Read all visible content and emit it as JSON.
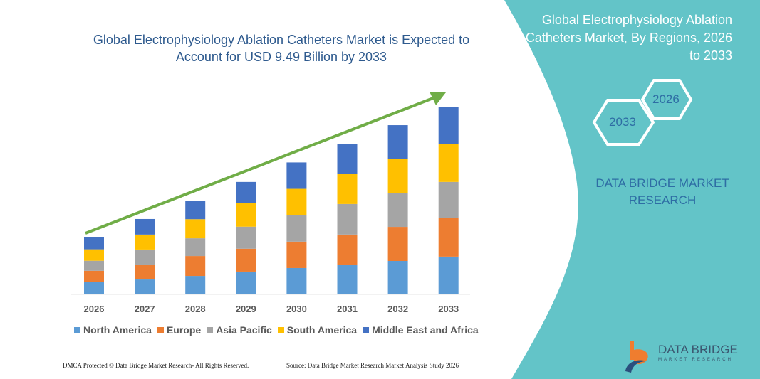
{
  "title": "Global Electrophysiology Ablation Catheters Market is Expected to Account for USD 9.49 Billion by 2033",
  "side_panel": {
    "title": "Global Electrophysiology Ablation Catheters Market, By Regions, 2026 to 2033",
    "hex_start": "2026",
    "hex_end": "2033",
    "brand": "DATA BRIDGE MARKET RESEARCH"
  },
  "footer": {
    "copyright": "DMCA Protected © Data Bridge Market Research- All Rights Reserved.",
    "source": "Source: Data Bridge Market Research Market Analysis Study 2026"
  },
  "logo": {
    "name": "DATA BRIDGE",
    "sub": "MARKET RESEARCH"
  },
  "colors": {
    "teal": "#63c4c8",
    "arrow": "#70ad47",
    "title": "#2e5a8e"
  },
  "chart_data": {
    "type": "bar",
    "stacked": true,
    "unit": "USD Billion (estimated, no axis printed)",
    "categories": [
      "2026",
      "2027",
      "2028",
      "2029",
      "2030",
      "2031",
      "2032",
      "2033"
    ],
    "legend_position": "bottom",
    "grid": false,
    "trend_arrow": true,
    "series": [
      {
        "name": "North America",
        "color": "#5b9bd5",
        "values": [
          0.58,
          0.72,
          0.9,
          1.12,
          1.3,
          1.48,
          1.66,
          1.88
        ]
      },
      {
        "name": "Europe",
        "color": "#ed7d31",
        "values": [
          0.58,
          0.76,
          1.01,
          1.16,
          1.34,
          1.52,
          1.73,
          1.95
        ]
      },
      {
        "name": "Asia Pacific",
        "color": "#a5a5a5",
        "values": [
          0.51,
          0.76,
          0.9,
          1.12,
          1.34,
          1.55,
          1.73,
          1.84
        ]
      },
      {
        "name": "South America",
        "color": "#ffc000",
        "values": [
          0.58,
          0.76,
          0.97,
          1.19,
          1.34,
          1.52,
          1.7,
          1.91
        ]
      },
      {
        "name": "Middle East and Africa",
        "color": "#4472c4",
        "values": [
          0.61,
          0.79,
          0.94,
          1.08,
          1.34,
          1.52,
          1.73,
          1.91
        ]
      }
    ]
  }
}
